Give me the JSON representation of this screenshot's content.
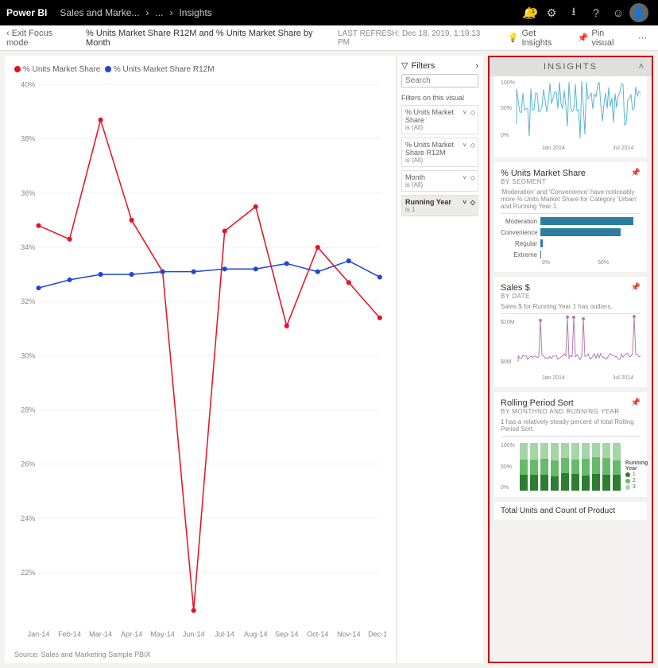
{
  "topbar": {
    "brand": "Power BI",
    "crumb1": "Sales and Marke...",
    "crumb2": "...",
    "crumb3": "Insights",
    "badge": "1"
  },
  "subbar": {
    "exit": "Exit Focus mode",
    "title": "% Units Market Share R12M and % Units Market Share by Month",
    "last_refresh_label": "LAST REFRESH:",
    "last_refresh_time": "Dec 18, 2019, 1:19:13 PM",
    "get_insights": "Get Insights",
    "pin_visual": "Pin visual"
  },
  "legend": {
    "series1": {
      "label": "% Units Market Share",
      "color": "#e81123"
    },
    "series2": {
      "label": "% Units Market Share R12M",
      "color": "#2045d8"
    }
  },
  "chart": {
    "type": "line",
    "x_categories": [
      "Jan-14",
      "Feb-14",
      "Mar-14",
      "Apr-14",
      "May-14",
      "Jun-14",
      "Jul-14",
      "Aug-14",
      "Sep-14",
      "Oct-14",
      "Nov-14",
      "Dec-14"
    ],
    "y_ticks": [
      "40%",
      "38%",
      "36%",
      "34%",
      "32%",
      "30%",
      "28%",
      "26%",
      "24%",
      "22%"
    ],
    "y_min": 20,
    "y_max": 40,
    "series1_values": [
      34.8,
      34.3,
      38.7,
      35.0,
      33.1,
      20.6,
      34.6,
      35.5,
      31.1,
      34.0,
      32.7,
      31.4
    ],
    "series2_values": [
      32.5,
      32.8,
      33.0,
      33.0,
      33.1,
      33.1,
      33.2,
      33.2,
      33.4,
      33.1,
      33.5,
      32.9
    ],
    "series1_color": "#e81123",
    "series2_color": "#2045d8",
    "marker_radius": 3,
    "grid_color": "#e6e6e6",
    "axis_color": "#c8c6c4",
    "label_color": "#8a8886",
    "label_fontsize": 9
  },
  "source_note": "Source: Sales and Marketing Sample PBIX",
  "filters": {
    "header": "Filters",
    "search_placeholder": "Search",
    "section": "Filters on this visual",
    "cards": [
      {
        "title": "% Units Market Share",
        "sub": "is (All)",
        "active": false
      },
      {
        "title": "% Units Market Share R12M",
        "sub": "is (All)",
        "active": false
      },
      {
        "title": "Month",
        "sub": "is (All)",
        "active": false
      },
      {
        "title": "Running Year",
        "sub": "is 1",
        "active": true
      }
    ]
  },
  "insights": {
    "header": "INSIGHTS",
    "top_noisy": {
      "color": "#5bb5d1",
      "y_labels": [
        "100%",
        "50%",
        "0%"
      ],
      "x_labels": [
        "Jan 2014",
        "Jul 2014"
      ]
    },
    "card1": {
      "title": "% Units Market Share",
      "by": "BY SEGMENT",
      "desc": "'Moderation' and 'Convenience' have noticeably more % Units Market Share for Category 'Urban' and Running Year 1.",
      "bars": [
        {
          "label": "Moderation",
          "pct": 90
        },
        {
          "label": "Convenience",
          "pct": 78
        },
        {
          "label": "Regular",
          "pct": 2
        },
        {
          "label": "Extreme",
          "pct": 1
        }
      ],
      "bar_color": "#2c7ea0",
      "axis": [
        "0%",
        "50%"
      ]
    },
    "card2": {
      "title": "Sales $",
      "by": "BY DATE",
      "desc": "Sales $ for Running Year 1 has outliers.",
      "color": "#b77bb0",
      "y_labels": [
        "$10M",
        "$0M"
      ],
      "x_labels": [
        "Jan 2014",
        "Jul 2014"
      ]
    },
    "card3": {
      "title": "Rolling Period Sort",
      "by": "BY MONTHNO AND RUNNING YEAR",
      "desc": "1 has a relatively steady percent of total Rolling Period Sort.",
      "legend_title": "Running Year",
      "legend_items": [
        "1",
        "2",
        "3"
      ],
      "colors": [
        "#2e7d32",
        "#66bb6a",
        "#a5d6a7"
      ],
      "y_labels": [
        "100%",
        "50%",
        "0%"
      ]
    },
    "bottom_peek": "Total Units and Count of Product"
  }
}
